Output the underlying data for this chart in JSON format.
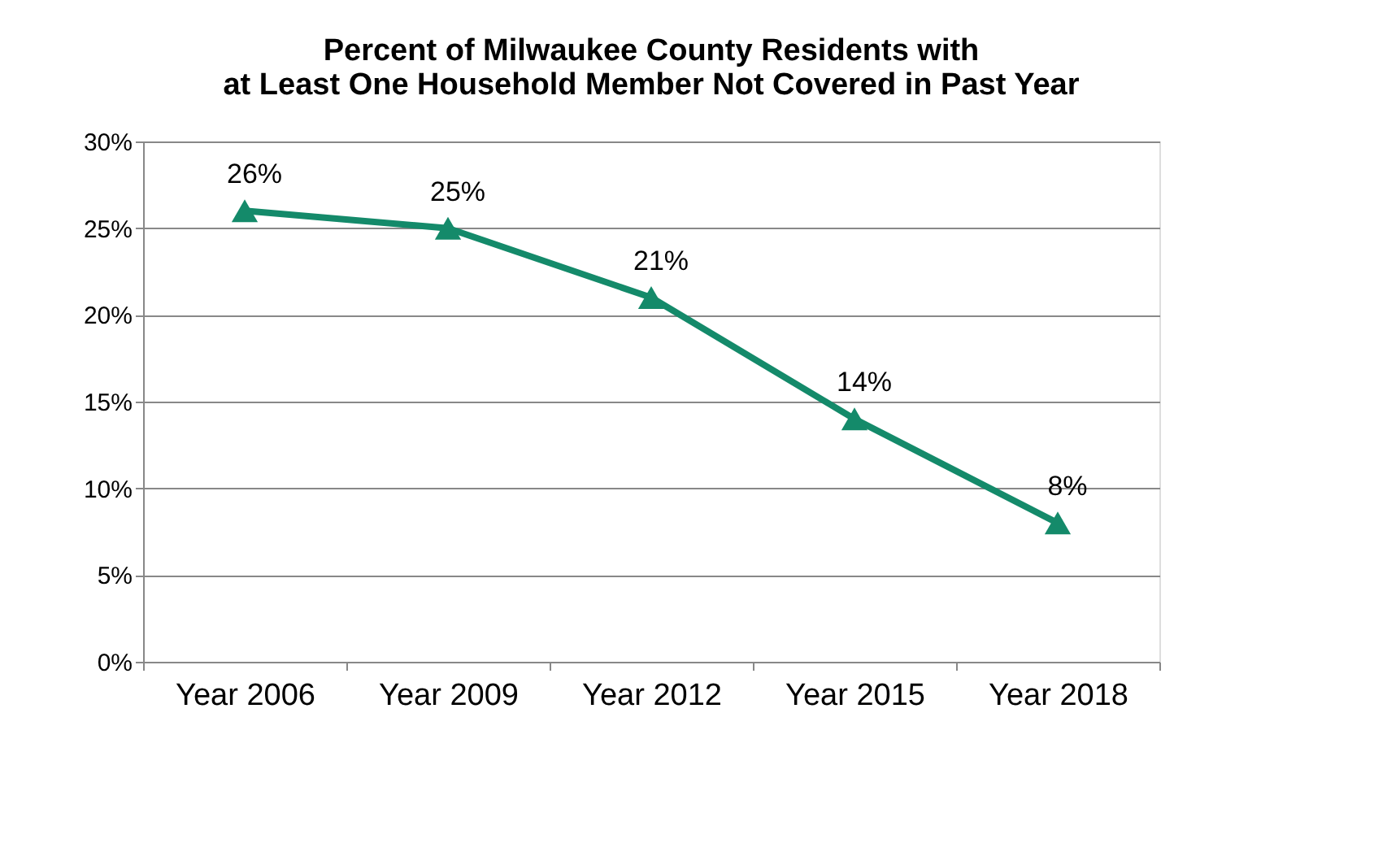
{
  "chart_data": {
    "type": "line",
    "title": "Percent of Milwaukee County Residents with at Least One Household Member Not Covered in Past Year",
    "categories": [
      "Year 2006",
      "Year 2009",
      "Year 2012",
      "Year 2015",
      "Year 2018"
    ],
    "series": [
      {
        "color": "#148a6a",
        "values": [
          26,
          25,
          21,
          14,
          8
        ],
        "value_labels": [
          "26%",
          "25%",
          "21%",
          "14%",
          "8%"
        ]
      }
    ],
    "ylim": [
      0,
      30
    ],
    "yticks": [
      {
        "value": 0,
        "label": "0%"
      },
      {
        "value": 5,
        "label": "5%"
      },
      {
        "value": 10,
        "label": "10%"
      },
      {
        "value": 15,
        "label": "15%"
      },
      {
        "value": 20,
        "label": "20%"
      },
      {
        "value": 25,
        "label": "25%"
      },
      {
        "value": 30,
        "label": "30%"
      }
    ],
    "grid": "y",
    "marker": "triangle",
    "line_style": "solid"
  }
}
